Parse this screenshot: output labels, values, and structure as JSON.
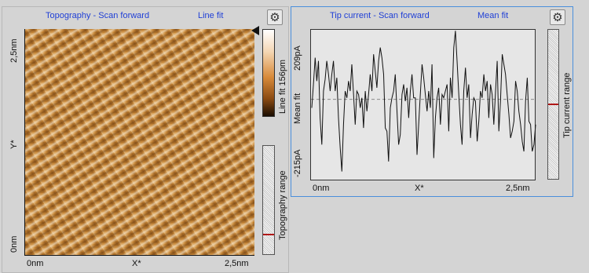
{
  "topography": {
    "title": "Topography - Scan forward",
    "fit_mode": "Line fit",
    "y_axis_label": "Y*",
    "x_axis_label": "X*",
    "y_tick_top": "2,5nm",
    "y_tick_bottom": "0nm",
    "x_tick_left": "0nm",
    "x_tick_right": "2,5nm",
    "colorbar_label": "Line fit 156pm",
    "range_label": "Topography range",
    "icons": {
      "settings": "gear-icon",
      "marker": "triangle-left-icon"
    }
  },
  "tip_current": {
    "title": "Tip current - Scan forward",
    "fit_mode": "Mean fit",
    "y_tick_top": "209pA",
    "y_tick_mid": "Mean fit",
    "y_tick_bottom": "-215pA",
    "x_axis_label": "X*",
    "x_tick_left": "0nm",
    "x_tick_right": "2,5nm",
    "range_label": "Tip current range",
    "icons": {
      "settings": "gear-icon"
    }
  },
  "chart_data": {
    "type": "line",
    "title": "Tip current - Scan forward",
    "xlabel": "X*",
    "ylabel": "",
    "xlim": [
      0,
      2.5
    ],
    "ylim": [
      -215,
      209
    ],
    "x_unit": "nm",
    "y_unit": "pA",
    "mean_line": true,
    "series": [
      {
        "color": "#111111",
        "values": [
          -10,
          60,
          140,
          70,
          130,
          -40,
          -120,
          40,
          75,
          130,
          90,
          40,
          90,
          130,
          40,
          80,
          -40,
          -130,
          -200,
          -60,
          40,
          20,
          70,
          40,
          120,
          30,
          -60,
          40,
          30,
          -10,
          20,
          -70,
          40,
          -20,
          30,
          90,
          40,
          150,
          100,
          50,
          130,
          170,
          140,
          90,
          -70,
          -80,
          -170,
          -10,
          20,
          40,
          90,
          -20,
          -120,
          -90,
          30,
          60,
          10,
          50,
          -40,
          40,
          90,
          20,
          20,
          -150,
          -60,
          30,
          120,
          80,
          30,
          -20,
          40,
          -10,
          120,
          -160,
          -40,
          20,
          50,
          -60,
          30,
          20,
          40,
          60,
          -80,
          80,
          20,
          170,
          220,
          130,
          30,
          -60,
          -120,
          40,
          110,
          20,
          60,
          -100,
          -30,
          20,
          10,
          -110,
          -50,
          40,
          20,
          90,
          40,
          70,
          -40,
          60,
          30,
          -60,
          40,
          130,
          -80,
          10,
          150,
          120,
          90,
          30,
          -30,
          -100,
          -80,
          -50,
          70,
          40,
          -20,
          -60,
          -110,
          -140,
          10,
          80,
          -50,
          -60,
          -140,
          -120,
          -60
        ]
      }
    ]
  },
  "colors": {
    "title_blue": "#1f3fd6",
    "active_border": "#4a8fdc",
    "marker_red": "#b01818",
    "background": "#d4d4d4"
  }
}
